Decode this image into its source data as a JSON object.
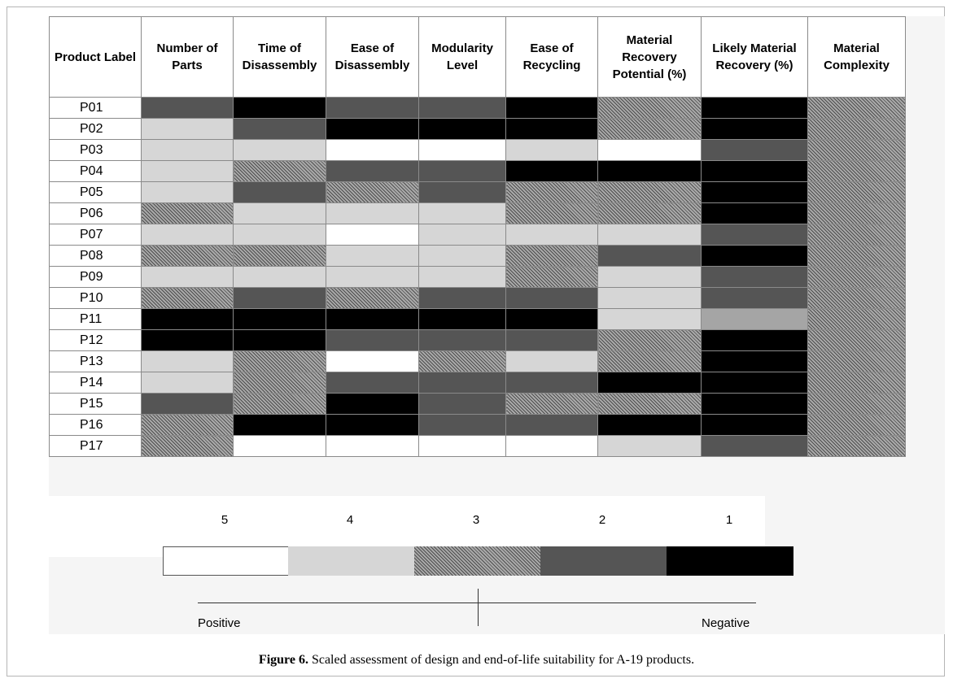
{
  "chart_data": {
    "type": "heatmap",
    "columns": [
      "Product Label",
      "Number of Parts",
      "Time of Disassembly",
      "Ease of Disassembly",
      "Modularity Level",
      "Ease of Recycling",
      "Material Recovery Potential (%)",
      "Likely Material Recovery (%)",
      "Material Complexity"
    ],
    "rows": [
      {
        "label": "P01",
        "values": [
          2,
          1,
          2,
          2,
          1,
          3,
          1,
          3
        ]
      },
      {
        "label": "P02",
        "values": [
          4,
          2,
          1,
          1,
          1,
          3,
          1,
          3
        ]
      },
      {
        "label": "P03",
        "values": [
          4,
          4,
          5,
          5,
          4,
          5,
          2,
          3
        ]
      },
      {
        "label": "P04",
        "values": [
          4,
          3,
          2,
          2,
          1,
          1,
          1,
          3
        ]
      },
      {
        "label": "P05",
        "values": [
          4,
          2,
          3,
          2,
          3,
          3,
          1,
          3
        ]
      },
      {
        "label": "P06",
        "values": [
          3,
          4,
          4,
          4,
          3,
          3,
          1,
          3
        ]
      },
      {
        "label": "P07",
        "values": [
          4,
          4,
          5,
          4,
          4,
          4,
          2,
          3
        ]
      },
      {
        "label": "P08",
        "values": [
          3,
          3,
          4,
          4,
          3,
          2,
          1,
          3
        ]
      },
      {
        "label": "P09",
        "values": [
          4,
          4,
          4,
          4,
          3,
          4,
          2,
          3
        ]
      },
      {
        "label": "P10",
        "values": [
          3,
          2,
          3,
          2,
          2,
          4,
          2,
          3
        ]
      },
      {
        "label": "P11",
        "values": [
          1,
          1,
          1,
          1,
          1,
          4,
          null,
          3
        ]
      },
      {
        "label": "P12",
        "values": [
          1,
          1,
          2,
          2,
          2,
          3,
          1,
          3
        ]
      },
      {
        "label": "P13",
        "values": [
          4,
          3,
          5,
          3,
          4,
          3,
          1,
          3
        ]
      },
      {
        "label": "P14",
        "values": [
          4,
          3,
          2,
          2,
          2,
          1,
          1,
          3
        ]
      },
      {
        "label": "P15",
        "values": [
          2,
          3,
          1,
          2,
          3,
          3,
          1,
          3
        ]
      },
      {
        "label": "P16",
        "values": [
          3,
          1,
          1,
          2,
          2,
          1,
          1,
          3
        ]
      },
      {
        "label": "P17",
        "values": [
          3,
          5,
          5,
          5,
          5,
          4,
          2,
          3
        ]
      }
    ],
    "scale": {
      "levels": [
        5,
        4,
        3,
        2,
        1
      ],
      "left_label": "Positive",
      "right_label": "Negative"
    },
    "colors": {
      "5": "#ffffff",
      "4": "#d6d6d6",
      "3": "hatched-grey",
      "2": "#555555",
      "1": "#000000",
      "other": "#a5a5a5"
    }
  },
  "caption": {
    "prefix": "Figure 6.",
    "text": " Scaled assessment of design and end-of-life suitability for A-19 products."
  }
}
